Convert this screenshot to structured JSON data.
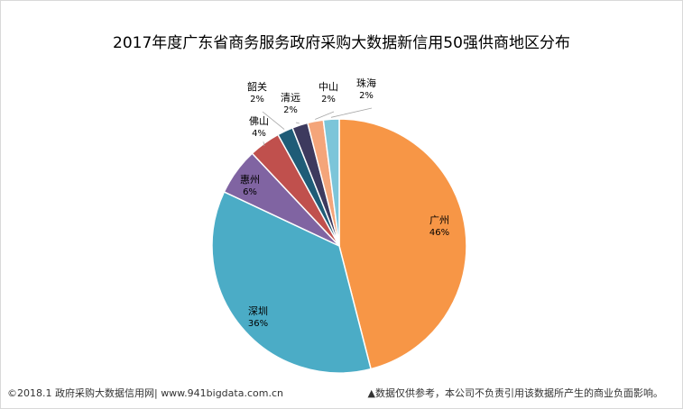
{
  "chart_data": {
    "type": "pie",
    "title": "2017年度广东省商务服务政府采购大数据新信用50强供商地区分布",
    "categories": [
      "广州",
      "深圳",
      "惠州",
      "佛山",
      "韶关",
      "清远",
      "中山",
      "珠海"
    ],
    "values": [
      46,
      36,
      6,
      4,
      2,
      2,
      2,
      2
    ],
    "value_labels": [
      "46%",
      "36%",
      "6%",
      "4%",
      "2%",
      "2%",
      "2%",
      "2%"
    ],
    "colors": [
      "#f79646",
      "#4bacc6",
      "#8064a2",
      "#c0504d",
      "#1f5c77",
      "#3d3a5e",
      "#f4a57a",
      "#7cc5d9"
    ],
    "legend": "none"
  },
  "footer": {
    "source": "©2018.1 政府采购大数据信用网| www.941bigdata.com.cn",
    "disclaimer": "▲数据仅供参考，本公司不负责引用该数据所产生的商业负面影响。"
  }
}
